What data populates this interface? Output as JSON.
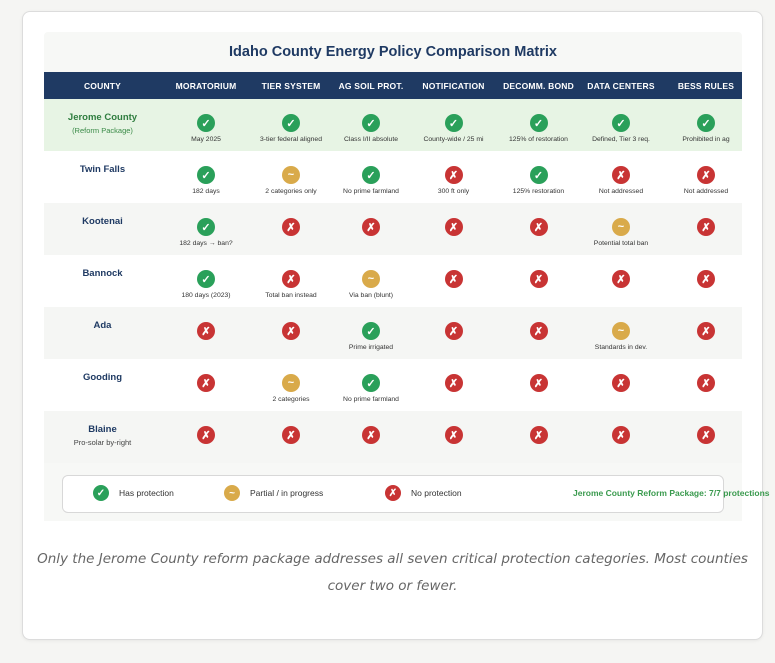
{
  "chart_data": {
    "type": "table",
    "title": "Idaho County Energy Policy Comparison Matrix",
    "columns": [
      "COUNTY",
      "MORATORIUM",
      "TIER SYSTEM",
      "AG SOIL PROT.",
      "NOTIFICATION",
      "DECOMM. BOND",
      "DATA CENTERS",
      "BESS RULES"
    ],
    "rows": [
      {
        "county": "Jerome County",
        "sub": "(Reform Package)",
        "highlight": true,
        "cells": [
          {
            "status": "check",
            "note": "May 2025"
          },
          {
            "status": "check",
            "note": "3-tier federal aligned"
          },
          {
            "status": "check",
            "note": "Class I/II absolute"
          },
          {
            "status": "check",
            "note": "County-wide / 25 mi"
          },
          {
            "status": "check",
            "note": "125% of restoration"
          },
          {
            "status": "check",
            "note": "Defined, Tier 3 req."
          },
          {
            "status": "check",
            "note": "Prohibited in ag"
          }
        ]
      },
      {
        "county": "Twin Falls",
        "sub": "",
        "highlight": false,
        "cells": [
          {
            "status": "check",
            "note": "182 days"
          },
          {
            "status": "partial",
            "note": "2 categories only"
          },
          {
            "status": "check",
            "note": "No prime farmland"
          },
          {
            "status": "no",
            "note": "300 ft only"
          },
          {
            "status": "check",
            "note": "125% restoration"
          },
          {
            "status": "no",
            "note": "Not addressed"
          },
          {
            "status": "no",
            "note": "Not addressed"
          }
        ]
      },
      {
        "county": "Kootenai",
        "sub": "",
        "highlight": false,
        "cells": [
          {
            "status": "check",
            "note": "182 days → ban?"
          },
          {
            "status": "no",
            "note": ""
          },
          {
            "status": "no",
            "note": ""
          },
          {
            "status": "no",
            "note": ""
          },
          {
            "status": "no",
            "note": ""
          },
          {
            "status": "partial",
            "note": "Potential total ban"
          },
          {
            "status": "no",
            "note": ""
          }
        ]
      },
      {
        "county": "Bannock",
        "sub": "",
        "highlight": false,
        "cells": [
          {
            "status": "check",
            "note": "180 days (2023)"
          },
          {
            "status": "no",
            "note": "Total ban instead"
          },
          {
            "status": "partial",
            "note": "Via ban (blunt)"
          },
          {
            "status": "no",
            "note": ""
          },
          {
            "status": "no",
            "note": ""
          },
          {
            "status": "no",
            "note": ""
          },
          {
            "status": "no",
            "note": ""
          }
        ]
      },
      {
        "county": "Ada",
        "sub": "",
        "highlight": false,
        "cells": [
          {
            "status": "no",
            "note": ""
          },
          {
            "status": "no",
            "note": ""
          },
          {
            "status": "check",
            "note": "Prime irrigated"
          },
          {
            "status": "no",
            "note": ""
          },
          {
            "status": "no",
            "note": ""
          },
          {
            "status": "partial",
            "note": "Standards in dev."
          },
          {
            "status": "no",
            "note": ""
          }
        ]
      },
      {
        "county": "Gooding",
        "sub": "",
        "highlight": false,
        "cells": [
          {
            "status": "no",
            "note": ""
          },
          {
            "status": "partial",
            "note": "2 categories"
          },
          {
            "status": "check",
            "note": "No prime farmland"
          },
          {
            "status": "no",
            "note": ""
          },
          {
            "status": "no",
            "note": ""
          },
          {
            "status": "no",
            "note": ""
          },
          {
            "status": "no",
            "note": ""
          }
        ]
      },
      {
        "county": "Blaine",
        "sub": "Pro-solar by-right",
        "highlight": false,
        "cells": [
          {
            "status": "no",
            "note": ""
          },
          {
            "status": "no",
            "note": ""
          },
          {
            "status": "no",
            "note": ""
          },
          {
            "status": "no",
            "note": ""
          },
          {
            "status": "no",
            "note": ""
          },
          {
            "status": "no",
            "note": ""
          },
          {
            "status": "no",
            "note": ""
          }
        ]
      }
    ],
    "legend": [
      {
        "status": "check",
        "label": "Has protection"
      },
      {
        "status": "partial",
        "label": "Partial / in progress"
      },
      {
        "status": "no",
        "label": "No protection"
      }
    ],
    "legend_summary": "Jerome County Reform Package: 7/7 protections"
  },
  "symbols": {
    "check": "✓",
    "partial": "~",
    "no": "✗"
  },
  "colors": {
    "check": "#2aa05a",
    "partial": "#d9aa4a",
    "no": "#c83434",
    "header": "#1f3a63",
    "highlight": "#e7f4e4"
  },
  "caption": "Only the Jerome County reform package addresses all seven critical protection categories. Most counties cover two or fewer."
}
